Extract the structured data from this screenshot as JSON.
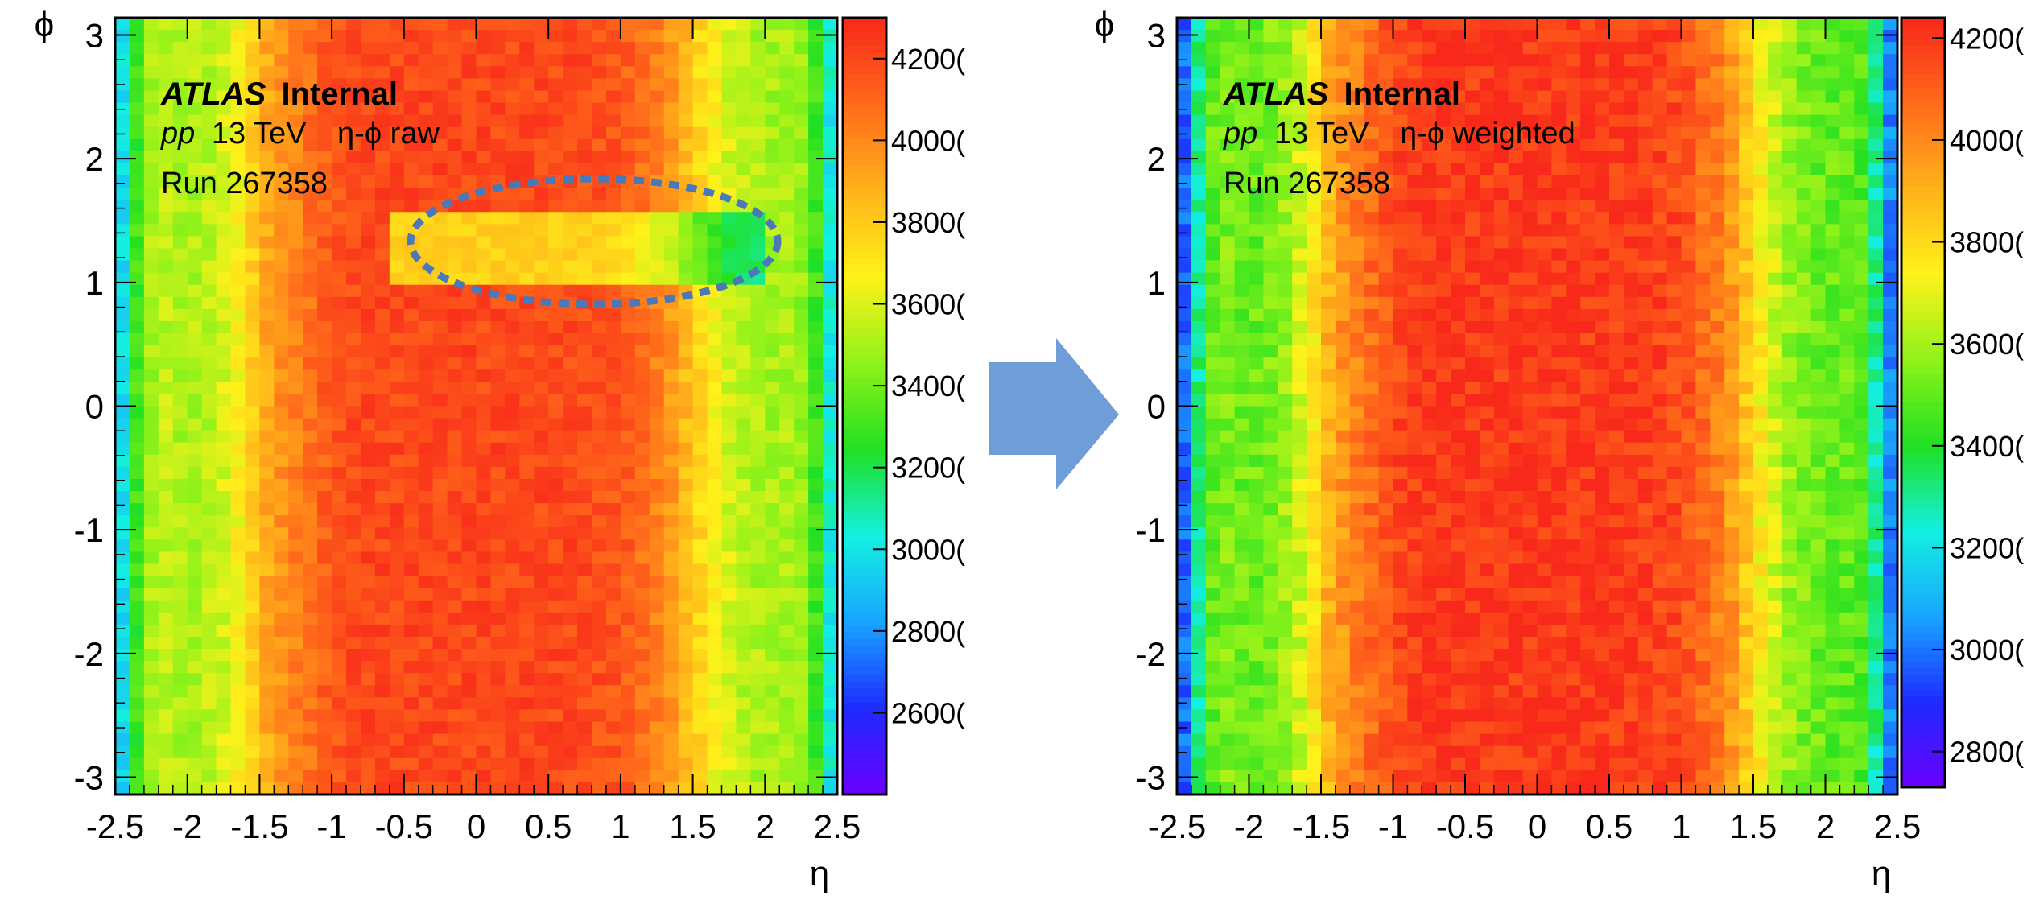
{
  "colors": {
    "palette": [
      "#6a00ff",
      "#1e2bff",
      "#19a5ff",
      "#13f0e0",
      "#21e021",
      "#8ff21a",
      "#fff21a",
      "#ffb21a",
      "#ff6a1a",
      "#f8281a"
    ],
    "arrow": "#6f9dd8",
    "ellipse": "#4a78b8"
  },
  "chart_data": [
    {
      "type": "heatmap",
      "title": "",
      "xlabel": "η",
      "ylabel": "ϕ",
      "xlim": [
        -2.5,
        2.5
      ],
      "ylim": [
        -3.14,
        3.14
      ],
      "x_ticks": [
        "-2.5",
        "-2",
        "-1.5",
        "-1",
        "-0.5",
        "0",
        "0.5",
        "1",
        "1.5",
        "2",
        "2.5"
      ],
      "y_ticks": [
        "3",
        "2",
        "1",
        "0",
        "-1",
        "-2",
        "-3"
      ],
      "colorbar": {
        "zmin": 24000,
        "zmax": 43000,
        "tick_labels": [
          "4200(",
          "4000(",
          "3800(",
          "3600(",
          "3400(",
          "3200(",
          "3000(",
          "2800(",
          "2600("
        ],
        "tick_values": [
          42000,
          40000,
          38000,
          36000,
          34000,
          32000,
          30000,
          28000,
          26000
        ]
      },
      "eta_profile": {
        "eta": [
          -2.5,
          -2.4,
          -2.3,
          -2.2,
          -2.0,
          -1.8,
          -1.6,
          -1.5,
          -1.4,
          -1.3,
          -1.2,
          -1.1,
          -1.0,
          -0.8,
          -0.5,
          0.0,
          0.5,
          0.8,
          1.0,
          1.1,
          1.2,
          1.3,
          1.4,
          1.5,
          1.6,
          1.8,
          2.0,
          2.2,
          2.3,
          2.4,
          2.5
        ],
        "counts": [
          28000,
          31500,
          34500,
          35500,
          35000,
          35500,
          37000,
          38500,
          39500,
          40000,
          40500,
          41000,
          41500,
          42000,
          42000,
          42000,
          42000,
          41800,
          41500,
          41000,
          40500,
          40000,
          39000,
          38000,
          37000,
          35500,
          35000,
          35000,
          34500,
          31500,
          29000
        ]
      },
      "deficit_region": {
        "eta_min": -0.6,
        "eta_max": 2.0,
        "phi_min": 1.0,
        "phi_max": 1.6,
        "factor": 0.9
      },
      "annotations": {
        "experiment": "ATLAS",
        "status": "Internal",
        "beam": "pp",
        "energy": "13 TeV",
        "description": "η-ϕ raw",
        "run": "Run 267358"
      }
    },
    {
      "type": "heatmap",
      "title": "",
      "xlabel": "η",
      "ylabel": "ϕ",
      "xlim": [
        -2.5,
        2.5
      ],
      "ylim": [
        -3.14,
        3.14
      ],
      "x_ticks": [
        "-2.5",
        "-2",
        "-1.5",
        "-1",
        "-0.5",
        "0",
        "0.5",
        "1",
        "1.5",
        "2",
        "2.5"
      ],
      "y_ticks": [
        "3",
        "2",
        "1",
        "0",
        "-1",
        "-2",
        "-3"
      ],
      "colorbar": {
        "zmin": 27300,
        "zmax": 42400,
        "tick_labels": [
          "4200(",
          "4000(",
          "3800(",
          "3600(",
          "3400(",
          "3200(",
          "3000(",
          "2800("
        ],
        "tick_values": [
          42000,
          40000,
          38000,
          36000,
          34000,
          32000,
          30000,
          28000
        ]
      },
      "eta_profile": {
        "eta": [
          -2.5,
          -2.4,
          -2.3,
          -2.2,
          -2.0,
          -1.8,
          -1.6,
          -1.5,
          -1.4,
          -1.3,
          -1.2,
          -1.1,
          -1.0,
          -0.8,
          -0.5,
          0.0,
          0.5,
          0.8,
          1.0,
          1.1,
          1.2,
          1.3,
          1.4,
          1.5,
          1.6,
          1.8,
          2.0,
          2.2,
          2.3,
          2.4,
          2.5
        ],
        "counts": [
          28000,
          31500,
          34500,
          35500,
          35000,
          35500,
          37000,
          38500,
          39500,
          40000,
          40500,
          41000,
          41500,
          42000,
          42000,
          42000,
          42000,
          41800,
          41500,
          41000,
          40500,
          40000,
          39000,
          38000,
          37000,
          35500,
          35000,
          35000,
          34500,
          31500,
          29000
        ]
      },
      "annotations": {
        "experiment": "ATLAS",
        "status": "Internal",
        "beam": "pp",
        "energy": "13 TeV",
        "description": "η-ϕ weighted",
        "run": "Run 267358"
      }
    }
  ]
}
